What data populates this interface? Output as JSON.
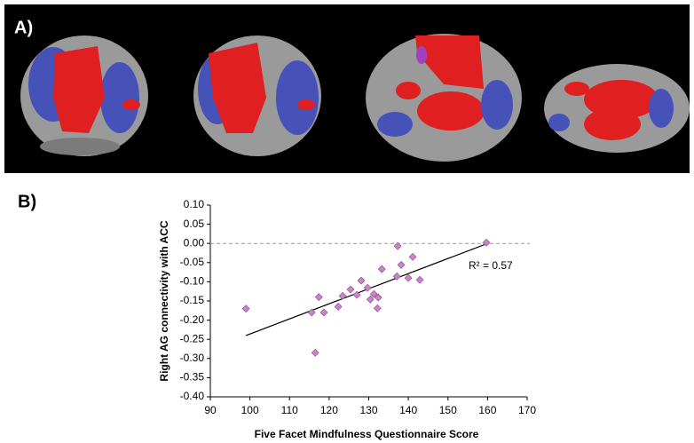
{
  "panel_labels": {
    "a": "A)",
    "b": "B)"
  },
  "chart_data": {
    "type": "scatter",
    "xlabel": "Five Facet Mindfulness Questionnaire Score",
    "ylabel": "Right AG connectivity with ACC",
    "x": [
      99,
      116.5,
      115.6,
      117.4,
      118.7,
      122.3,
      123.4,
      125.4,
      127,
      128.1,
      129.7,
      130.4,
      131.3,
      132.4,
      132.2,
      133.3,
      137.3,
      137.1,
      138.2,
      140,
      141.1,
      142.9,
      159.7
    ],
    "values": [
      -0.17,
      -0.285,
      -0.18,
      -0.14,
      -0.18,
      -0.165,
      -0.137,
      -0.12,
      -0.134,
      -0.097,
      -0.116,
      -0.146,
      -0.132,
      -0.141,
      -0.169,
      -0.067,
      -0.007,
      -0.086,
      -0.056,
      -0.09,
      -0.035,
      -0.095,
      0.002
    ],
    "color": "#c983c9",
    "marker": "diamond",
    "xlim": [
      90,
      170
    ],
    "xticks": [
      90,
      100,
      110,
      120,
      130,
      140,
      150,
      160,
      170
    ],
    "ylim": [
      -0.4,
      0.1
    ],
    "yticks": [
      {
        "value": 0.1,
        "label": "0.10"
      },
      {
        "value": 0.05,
        "label": "0.05"
      },
      {
        "value": 0,
        "label": "0.00"
      },
      {
        "value": -0.05,
        "label": "-0.05"
      },
      {
        "value": -0.1,
        "label": "-0.10"
      },
      {
        "value": -0.15,
        "label": "-0.15"
      },
      {
        "value": -0.2,
        "label": "-0.20"
      },
      {
        "value": -0.25,
        "label": "-0.25"
      },
      {
        "value": -0.3,
        "label": "-0.30"
      },
      {
        "value": -0.35,
        "label": "-0.35"
      },
      {
        "value": -0.4,
        "label": "-0.40"
      }
    ],
    "zero_line": true,
    "trendline": {
      "x": [
        99,
        160
      ],
      "y": [
        -0.24,
        0
      ]
    },
    "annotation": "R² = 0.57"
  }
}
